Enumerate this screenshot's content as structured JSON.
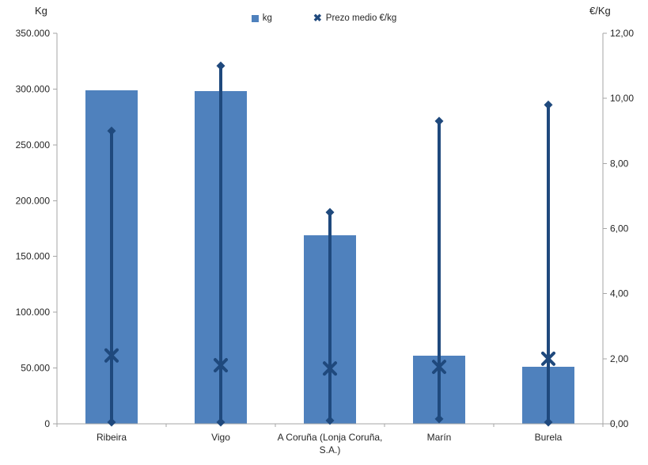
{
  "chart": {
    "legend": [
      {
        "label": "kg",
        "marker": "square",
        "color": "#4F81BD"
      },
      {
        "label": "Prezo medio €/kg",
        "marker": "x",
        "color": "#1F497D"
      }
    ],
    "colors": {
      "bar": "#4F81BD",
      "line": "#1F497D",
      "axis": "#A6A6A6",
      "text": "#262626",
      "background": "#FFFFFF"
    }
  },
  "chart_data": {
    "type": "bar",
    "categories": [
      "Ribeira",
      "Vigo",
      "A Coruña (Lonja Coruña, S.A.)",
      "Marín",
      "Burela"
    ],
    "series": [
      {
        "name": "kg",
        "type": "bar",
        "axis": "left",
        "values": [
          299000,
          298000,
          169000,
          61000,
          51000
        ]
      },
      {
        "name": "Prezo medio €/kg",
        "type": "scatter-x",
        "axis": "right",
        "values": [
          2.1,
          1.8,
          1.7,
          1.75,
          2.0
        ]
      }
    ],
    "range_lines": {
      "axis": "right",
      "high": [
        9.0,
        11.0,
        6.5,
        9.3,
        9.8
      ],
      "low": [
        0.05,
        0.05,
        0.1,
        0.15,
        0.05
      ]
    },
    "left_axis": {
      "title": "Kg",
      "min": 0,
      "max": 350000,
      "tick_step": 50000,
      "tick_labels": [
        "0",
        "50.000",
        "100.000",
        "150.000",
        "200.000",
        "250.000",
        "300.000",
        "350.000"
      ]
    },
    "right_axis": {
      "title": "€/Kg",
      "min": 0,
      "max": 12,
      "tick_step": 2,
      "tick_labels": [
        "0,00",
        "2,00",
        "4,00",
        "6,00",
        "8,00",
        "10,00",
        "12,00"
      ]
    },
    "grid": false,
    "legend_position": "top"
  }
}
